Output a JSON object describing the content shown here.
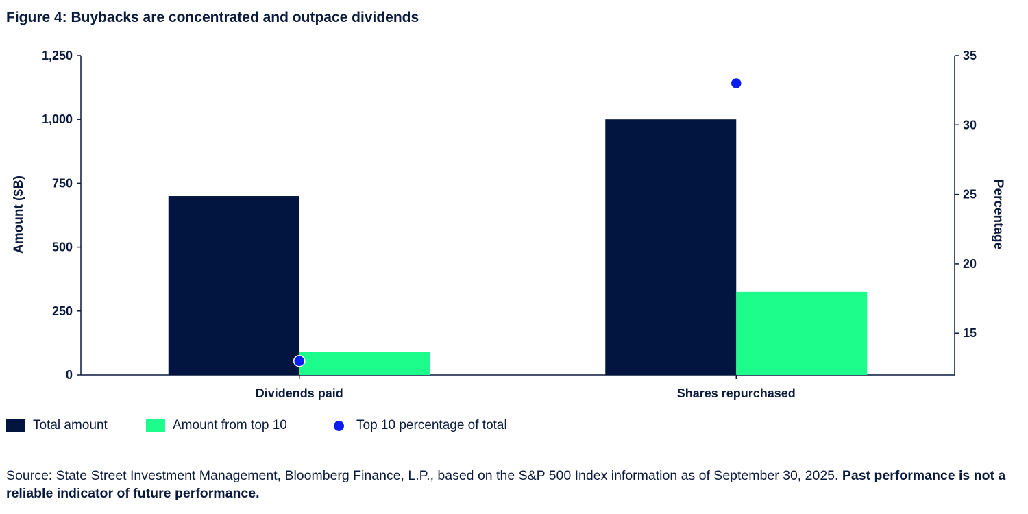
{
  "title": "Figure 4: Buybacks are concentrated and outpace dividends",
  "chart_data": {
    "type": "bar",
    "categories": [
      "Dividends paid",
      "Shares repurchased"
    ],
    "series": [
      {
        "name": "Total amount",
        "values": [
          700,
          1000
        ],
        "color": "#021540",
        "axis": "left"
      },
      {
        "name": "Amount from top 10",
        "values": [
          90,
          325
        ],
        "color": "#1dfd8c",
        "axis": "left"
      },
      {
        "name": "Top 10 percentage of total",
        "values": [
          13,
          33
        ],
        "color": "#0a1ef0",
        "axis": "right",
        "mark": "dot"
      }
    ],
    "ylabel": "Amount ($B)",
    "ylim": [
      0,
      1250
    ],
    "yticks": [
      "0",
      "250",
      "500",
      "750",
      "1,000",
      "1,250"
    ],
    "y2label": "Percentage",
    "y2lim": [
      12,
      35
    ],
    "y2ticks": [
      "15",
      "20",
      "25",
      "30",
      "35"
    ],
    "grid": false,
    "legend_position": "bottom-left"
  },
  "legend": {
    "total": "Total amount",
    "top10": "Amount from top 10",
    "pct": "Top 10 percentage of total"
  },
  "source": {
    "text": "Source: State Street Investment Management, Bloomberg Finance, L.P., based on the S&P 500 Index information as of September 30, 2025.",
    "bold": "Past performance is not a reliable indicator of future performance."
  }
}
